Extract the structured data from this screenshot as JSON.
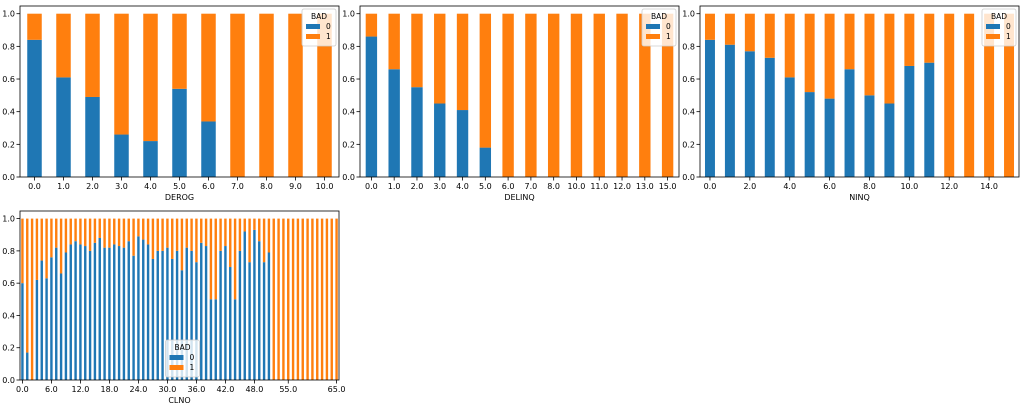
{
  "colors": {
    "bad0": "#1f77b4",
    "bad1": "#ff7f0e",
    "axis": "#000000"
  },
  "chart_data": [
    {
      "type": "bar",
      "stacked": true,
      "xlabel": "DEROG",
      "ylim": [
        0,
        1
      ],
      "yticks": [
        "0.0",
        "0.2",
        "0.4",
        "0.6",
        "0.8",
        "1.0"
      ],
      "categories": [
        "0.0",
        "1.0",
        "2.0",
        "3.0",
        "4.0",
        "5.0",
        "6.0",
        "7.0",
        "8.0",
        "9.0",
        "10.0"
      ],
      "tick_labels": [
        "0.0",
        "1.0",
        "2.0",
        "3.0",
        "4.0",
        "5.0",
        "6.0",
        "7.0",
        "8.0",
        "9.0",
        "10.0"
      ],
      "legend": {
        "title": "BAD",
        "entries": [
          "0",
          "1"
        ],
        "placement": "top-right"
      },
      "series": [
        {
          "name": "0",
          "values": [
            0.84,
            0.61,
            0.49,
            0.26,
            0.22,
            0.54,
            0.34,
            0,
            0,
            0,
            0
          ]
        },
        {
          "name": "1",
          "values": [
            0.16,
            0.39,
            0.51,
            0.74,
            0.78,
            0.46,
            0.66,
            1,
            1,
            1,
            1
          ]
        }
      ]
    },
    {
      "type": "bar",
      "stacked": true,
      "xlabel": "DELINQ",
      "ylim": [
        0,
        1
      ],
      "yticks": [
        "0.0",
        "0.2",
        "0.4",
        "0.6",
        "0.8",
        "1.0"
      ],
      "categories": [
        "0.0",
        "1.0",
        "2.0",
        "3.0",
        "4.0",
        "5.0",
        "6.0",
        "7.0",
        "8.0",
        "10.0",
        "11.0",
        "12.0",
        "13.0",
        "15.0"
      ],
      "tick_labels": [
        "0.0",
        "1.0",
        "2.0",
        "3.0",
        "4.0",
        "5.0",
        "6.0",
        "7.0",
        "8.0",
        "10.0",
        "11.0",
        "12.0",
        "13.0",
        "15.0"
      ],
      "legend": {
        "title": "BAD",
        "entries": [
          "0",
          "1"
        ],
        "placement": "top-right"
      },
      "series": [
        {
          "name": "0",
          "values": [
            0.86,
            0.66,
            0.55,
            0.45,
            0.41,
            0.18,
            0,
            0,
            0,
            0,
            0,
            0,
            0,
            0
          ]
        },
        {
          "name": "1",
          "values": [
            0.14,
            0.34,
            0.45,
            0.55,
            0.59,
            0.82,
            1,
            1,
            1,
            1,
            1,
            1,
            1,
            1
          ]
        }
      ]
    },
    {
      "type": "bar",
      "stacked": true,
      "xlabel": "NINQ",
      "ylim": [
        0,
        1
      ],
      "yticks": [
        "0.0",
        "0.2",
        "0.4",
        "0.6",
        "0.8",
        "1.0"
      ],
      "categories": [
        "0.0",
        "1.0",
        "2.0",
        "3.0",
        "4.0",
        "5.0",
        "6.0",
        "7.0",
        "8.0",
        "9.0",
        "10.0",
        "11.0",
        "12.0",
        "13.0",
        "14.0",
        "17.0"
      ],
      "tick_labels": [
        "0.0",
        "",
        "2.0",
        "",
        "4.0",
        "",
        "6.0",
        "",
        "8.0",
        "",
        "10.0",
        "",
        "12.0",
        "",
        "14.0",
        ""
      ],
      "legend": {
        "title": "BAD",
        "entries": [
          "0",
          "1"
        ],
        "placement": "top-right"
      },
      "series": [
        {
          "name": "0",
          "values": [
            0.84,
            0.81,
            0.77,
            0.73,
            0.61,
            0.52,
            0.48,
            0.66,
            0.5,
            0.45,
            0.68,
            0.7,
            0,
            0,
            0,
            0
          ]
        },
        {
          "name": "1",
          "values": [
            0.16,
            0.19,
            0.23,
            0.27,
            0.39,
            0.48,
            0.52,
            0.34,
            0.5,
            0.55,
            0.32,
            0.3,
            1,
            1,
            1,
            1
          ]
        }
      ]
    },
    {
      "type": "bar",
      "stacked": true,
      "xlabel": "CLNO",
      "ylim": [
        0,
        1
      ],
      "yticks": [
        "0.0",
        "0.2",
        "0.4",
        "0.6",
        "0.8",
        "1.0"
      ],
      "categories": [
        "0.0",
        "1.0",
        "2.0",
        "3.0",
        "4.0",
        "5.0",
        "6.0",
        "7.0",
        "8.0",
        "9.0",
        "10.0",
        "11.0",
        "12.0",
        "13.0",
        "14.0",
        "15.0",
        "16.0",
        "17.0",
        "18.0",
        "19.0",
        "20.0",
        "21.0",
        "22.0",
        "23.0",
        "24.0",
        "25.0",
        "26.0",
        "27.0",
        "28.0",
        "29.0",
        "30.0",
        "31.0",
        "32.0",
        "33.0",
        "34.0",
        "35.0",
        "36.0",
        "37.0",
        "38.0",
        "39.0",
        "40.0",
        "41.0",
        "42.0",
        "43.0",
        "44.0",
        "45.0",
        "46.0",
        "47.0",
        "48.0",
        "49.0",
        "50.0",
        "51.0",
        "52.0",
        "53.0",
        "54.0",
        "55.0",
        "56.0",
        "57.0",
        "58.0",
        "59.0",
        "60.0",
        "61.0",
        "62.0",
        "63.0",
        "64.0",
        "65.0"
      ],
      "tick_labels": [
        "0.0",
        "",
        "",
        "",
        "",
        "",
        "6.0",
        "",
        "",
        "",
        "",
        "",
        "12.0",
        "",
        "",
        "",
        "",
        "",
        "18.0",
        "",
        "",
        "",
        "",
        "",
        "24.0",
        "",
        "",
        "",
        "",
        "",
        "30.0",
        "",
        "",
        "",
        "",
        "",
        "36.0",
        "",
        "",
        "",
        "",
        "",
        "42.0",
        "",
        "",
        "",
        "",
        "",
        "48.0",
        "",
        "",
        "",
        "",
        "",
        "",
        "55.0",
        "",
        "",
        "",
        "",
        "",
        "",
        "",
        "",
        "",
        "65.0"
      ],
      "legend": {
        "title": "BAD",
        "entries": [
          "0",
          "1"
        ],
        "placement": "bottom-center"
      },
      "series": [
        {
          "name": "0",
          "values": [
            0.6,
            0.17,
            0,
            0.62,
            0.74,
            0.63,
            0.76,
            0.82,
            0.66,
            0.79,
            0.84,
            0.86,
            0.84,
            0.83,
            0.8,
            0.85,
            0.88,
            0.82,
            0.82,
            0.84,
            0.83,
            0.82,
            0.86,
            0.77,
            0.89,
            0.87,
            0.84,
            0.75,
            0.8,
            0.8,
            0.82,
            0.75,
            0.8,
            0.68,
            0.82,
            0.8,
            0.73,
            0.85,
            0.83,
            0.5,
            0.5,
            0.8,
            0.83,
            0.7,
            0.5,
            0.8,
            0.92,
            0.73,
            0.93,
            0.86,
            0.73,
            0.79,
            0,
            0,
            0,
            0,
            0,
            0,
            0,
            0,
            0,
            0,
            0,
            0,
            0,
            0
          ]
        },
        {
          "name": "1",
          "values": [
            0.4,
            0.83,
            1,
            0.38,
            0.26,
            0.37,
            0.24,
            0.18,
            0.34,
            0.21,
            0.16,
            0.14,
            0.16,
            0.17,
            0.2,
            0.15,
            0.12,
            0.18,
            0.18,
            0.16,
            0.17,
            0.18,
            0.14,
            0.23,
            0.11,
            0.13,
            0.16,
            0.25,
            0.2,
            0.2,
            0.18,
            0.25,
            0.2,
            0.32,
            0.18,
            0.2,
            0.27,
            0.15,
            0.17,
            0.5,
            0.5,
            0.2,
            0.17,
            0.3,
            0.5,
            0.2,
            0.08,
            0.27,
            0.07,
            0.14,
            0.27,
            0.21,
            1,
            1,
            1,
            1,
            1,
            1,
            1,
            1,
            1,
            1,
            1,
            1,
            1,
            1
          ]
        }
      ]
    }
  ]
}
